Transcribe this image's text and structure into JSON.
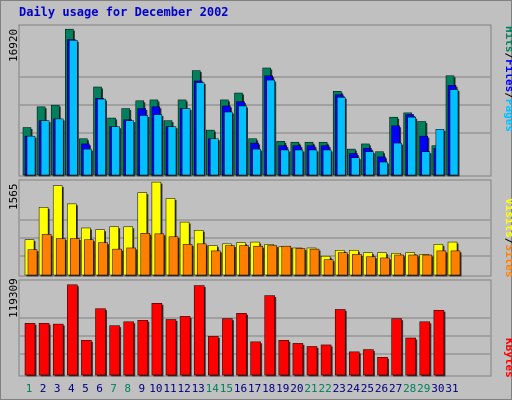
{
  "title": "Daily usage for December 2002",
  "colors": {
    "hits": "#00805c",
    "files": "#0000ff",
    "pages": "#00c0ff",
    "visits": "#ffff00",
    "sites": "#ff8000",
    "kbytes": "#ff0000",
    "weekend_label": "#00805c",
    "weekday_label": "#000080"
  },
  "chart_data": [
    {
      "type": "bar",
      "panel": "hits-files-pages",
      "y_axis_label": "16920",
      "ylim": [
        0,
        16920
      ],
      "categories": [
        "1",
        "2",
        "3",
        "4",
        "5",
        "6",
        "7",
        "8",
        "9",
        "10",
        "11",
        "12",
        "13",
        "14",
        "15",
        "16",
        "17",
        "18",
        "19",
        "20",
        "21",
        "22",
        "23",
        "24",
        "25",
        "26",
        "27",
        "28",
        "29",
        "30",
        "31"
      ],
      "right_labels": [
        "Pages",
        "Files",
        "Hits"
      ],
      "series": [
        {
          "name": "Hits",
          "values": [
            5500,
            7900,
            8100,
            16900,
            4200,
            10200,
            6600,
            7700,
            8600,
            8700,
            6300,
            8700,
            12100,
            5200,
            8700,
            9500,
            4200,
            12400,
            3900,
            3800,
            3800,
            3800,
            9700,
            3000,
            3600,
            2700,
            6700,
            7200,
            6200,
            3400,
            11500
          ]
        },
        {
          "name": "Files",
          "values": [
            4500,
            6300,
            6500,
            15700,
            3600,
            8900,
            5600,
            6400,
            7700,
            7900,
            5600,
            7700,
            10900,
            4200,
            8000,
            8500,
            3700,
            11500,
            3400,
            3400,
            3400,
            3400,
            9300,
            2500,
            3100,
            2100,
            5700,
            7000,
            4500,
            3100,
            10400
          ]
        },
        {
          "name": "Pages",
          "values": [
            4500,
            6300,
            6500,
            15600,
            3000,
            8800,
            5600,
            6300,
            6900,
            7000,
            5600,
            7700,
            10700,
            4200,
            7300,
            8000,
            3000,
            11000,
            2900,
            2900,
            2900,
            2900,
            9000,
            2000,
            2700,
            1500,
            3700,
            6700,
            2700,
            5300,
            9900
          ]
        }
      ]
    },
    {
      "type": "bar",
      "panel": "visits-sites",
      "y_axis_label": "1565",
      "ylim": [
        0,
        1565
      ],
      "categories": [
        "1",
        "2",
        "3",
        "4",
        "5",
        "6",
        "7",
        "8",
        "9",
        "10",
        "11",
        "12",
        "13",
        "14",
        "15",
        "16",
        "17",
        "18",
        "19",
        "20",
        "21",
        "22",
        "23",
        "24",
        "25",
        "26",
        "27",
        "28",
        "29",
        "30",
        "31"
      ],
      "right_labels": [
        "Sites",
        "Visits"
      ],
      "series": [
        {
          "name": "Visits",
          "values": [
            600,
            1150,
            1520,
            1210,
            800,
            770,
            820,
            820,
            1400,
            1580,
            1300,
            900,
            760,
            500,
            530,
            550,
            560,
            520,
            480,
            460,
            460,
            320,
            420,
            420,
            380,
            380,
            370,
            380,
            350,
            520,
            560
          ]
        },
        {
          "name": "Sites",
          "values": [
            430,
            690,
            620,
            620,
            600,
            550,
            440,
            460,
            710,
            700,
            650,
            520,
            530,
            410,
            500,
            500,
            490,
            500,
            490,
            450,
            440,
            260,
            380,
            350,
            310,
            290,
            340,
            340,
            340,
            410,
            410
          ]
        }
      ]
    },
    {
      "type": "bar",
      "panel": "kbytes",
      "y_axis_label": "119309",
      "ylim": [
        0,
        119309
      ],
      "categories": [
        "1",
        "2",
        "3",
        "4",
        "5",
        "6",
        "7",
        "8",
        "9",
        "10",
        "11",
        "12",
        "13",
        "14",
        "15",
        "16",
        "17",
        "18",
        "19",
        "20",
        "21",
        "22",
        "23",
        "24",
        "25",
        "26",
        "27",
        "28",
        "29",
        "30",
        "31"
      ],
      "right_labels": [
        "KBytes"
      ],
      "series": [
        {
          "name": "KBytes",
          "values": [
            67000,
            67000,
            66000,
            117000,
            45000,
            86000,
            64000,
            69000,
            71000,
            93000,
            72000,
            76000,
            116000,
            50000,
            73000,
            80000,
            43000,
            103000,
            45000,
            41000,
            37000,
            39000,
            85000,
            30000,
            33000,
            23000,
            73000,
            48000,
            69000,
            84000,
            0
          ]
        }
      ]
    }
  ]
}
